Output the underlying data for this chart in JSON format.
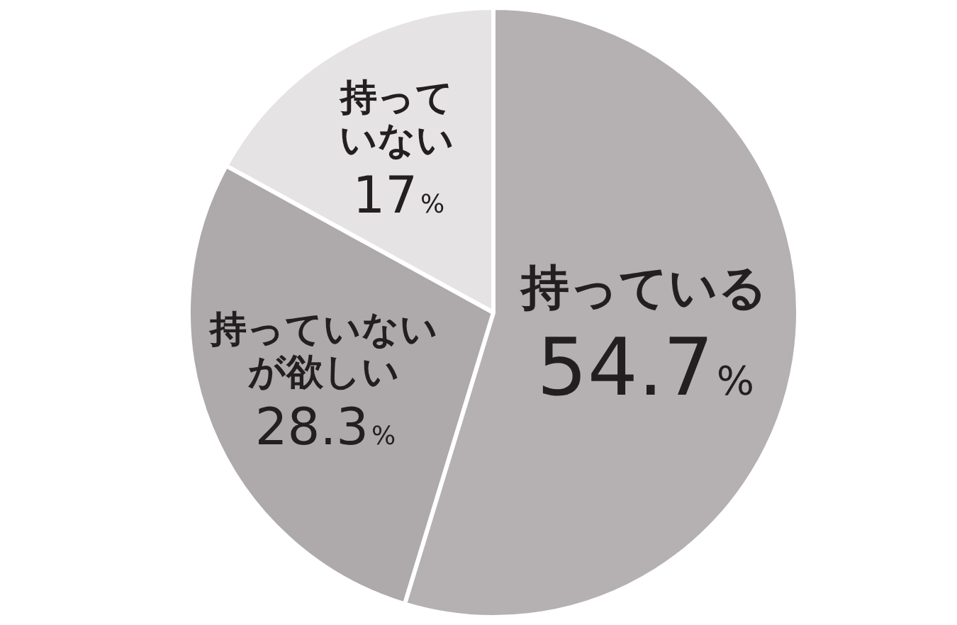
{
  "chart_data": {
    "type": "pie",
    "categories": [
      "持っている",
      "持っていないが欲しい",
      "持っていない"
    ],
    "values": [
      54.7,
      28.3,
      17
    ],
    "value_labels": [
      "54.7%",
      "28.3%",
      "17%"
    ],
    "colors": [
      "#b5b1b2",
      "#aeaaab",
      "#e5e3e4"
    ],
    "legend": false
  }
}
